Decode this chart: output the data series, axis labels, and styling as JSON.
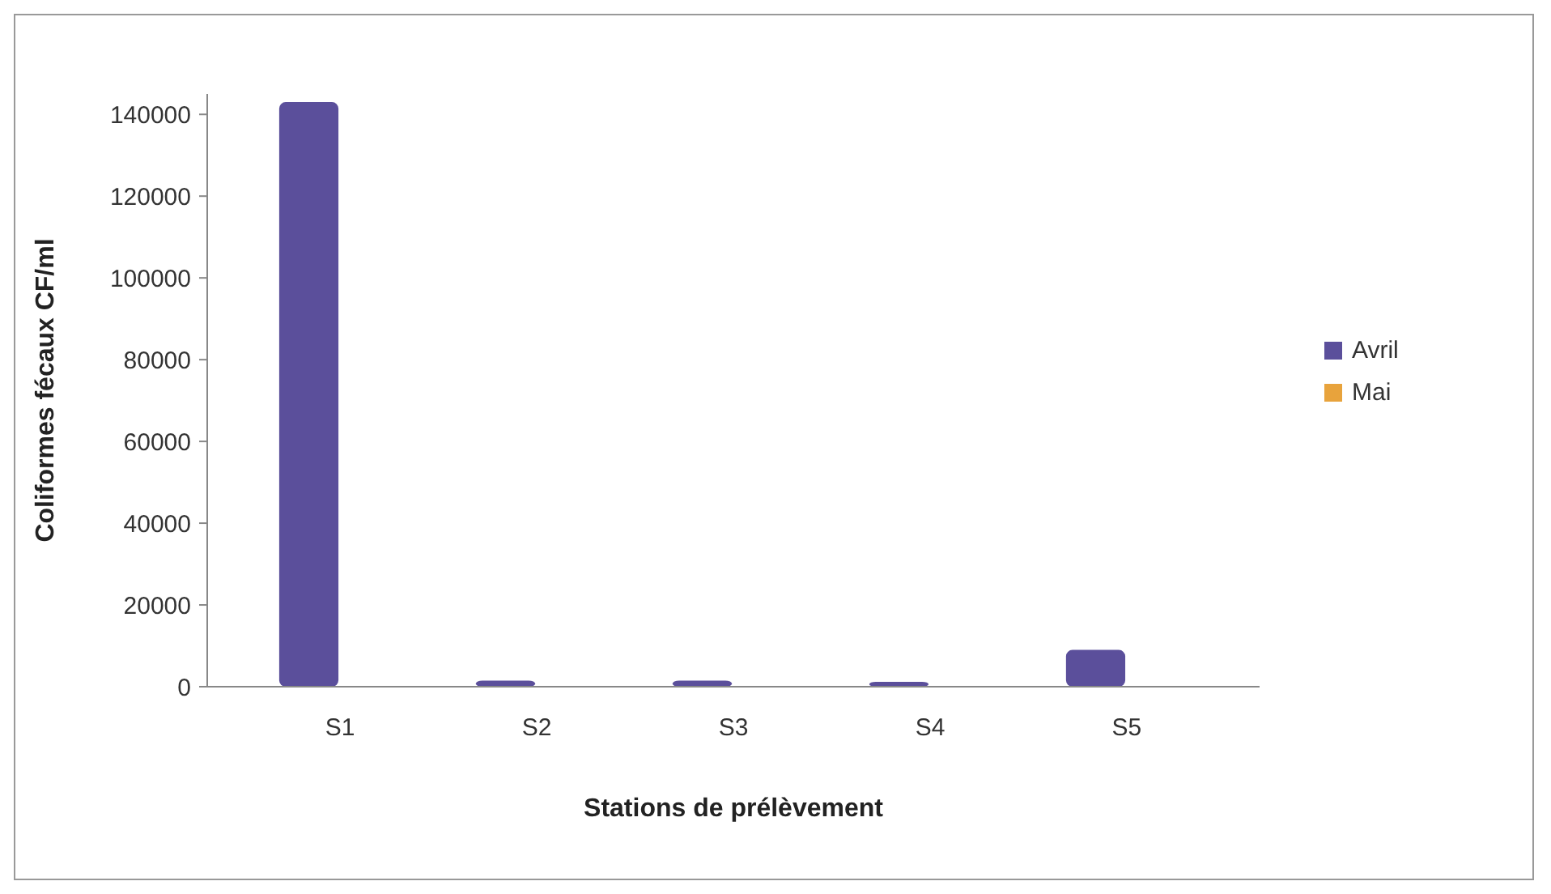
{
  "chart_data": {
    "type": "bar",
    "xlabel": "Stations de prélèvement",
    "ylabel": "Coliformes fécaux CF/ml",
    "categories": [
      "S1",
      "S2",
      "S3",
      "S4",
      "S5"
    ],
    "series": [
      {
        "name": "Avril",
        "color": "#5b4f9b",
        "values": [
          143000,
          1500,
          1500,
          1200,
          9000
        ]
      },
      {
        "name": "Mai",
        "color": "#e8a33c",
        "values": [
          0,
          0,
          0,
          0,
          0
        ]
      }
    ],
    "ylim": [
      0,
      145000
    ],
    "yticks": [
      0,
      20000,
      40000,
      60000,
      80000,
      100000,
      120000,
      140000
    ],
    "legend": "right",
    "grid": false
  }
}
